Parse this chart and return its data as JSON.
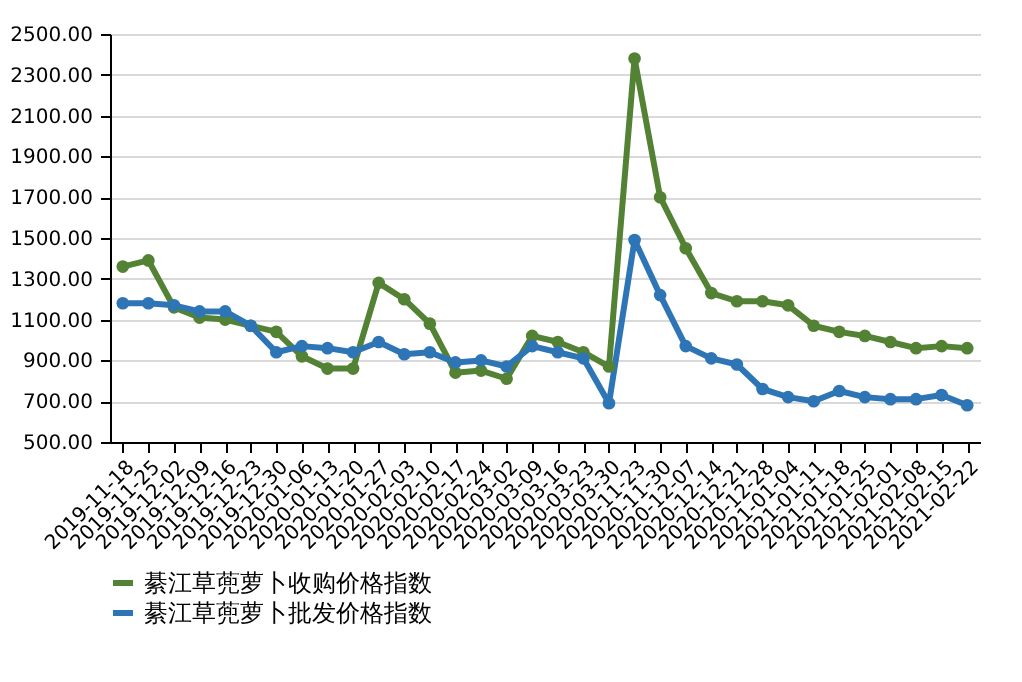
{
  "chart_data": {
    "type": "line",
    "categories": [
      "2019-11-18",
      "2019-11-25",
      "2019-12-02",
      "2019-12-09",
      "2019-12-16",
      "2019-12-23",
      "2019-12-30",
      "2020-01-06",
      "2020-01-13",
      "2020-01-20",
      "2020-01-27",
      "2020-02-03",
      "2020-02-10",
      "2020-02-17",
      "2020-02-24",
      "2020-03-02",
      "2020-03-09",
      "2020-03-16",
      "2020-03-23",
      "2020-03-30",
      "2020-11-23",
      "2020-11-30",
      "2020-12-07",
      "2020-12-14",
      "2020-12-21",
      "2020-12-28",
      "2021-01-04",
      "2021-01-11",
      "2021-01-18",
      "2021-01-25",
      "2021-02-01",
      "2021-02-08",
      "2021-02-15",
      "2021-02-22"
    ],
    "series": [
      {
        "name": "綦江草蔸萝卜收购价格指数",
        "color": "#548235",
        "values": [
          1360,
          1390,
          1160,
          1110,
          1100,
          1070,
          1040,
          920,
          860,
          860,
          1280,
          1200,
          1080,
          840,
          850,
          810,
          1020,
          990,
          940,
          870,
          2380,
          1700,
          1450,
          1230,
          1190,
          1190,
          1170,
          1070,
          1040,
          1020,
          990,
          960,
          970,
          960
        ]
      },
      {
        "name": "綦江草蔸萝卜批发价格指数",
        "color": "#2e75b6",
        "values": [
          1180,
          1180,
          1170,
          1140,
          1140,
          1070,
          940,
          970,
          960,
          940,
          990,
          930,
          940,
          890,
          900,
          870,
          970,
          940,
          910,
          690,
          1490,
          1220,
          970,
          910,
          880,
          760,
          720,
          700,
          750,
          720,
          710,
          710,
          730,
          680
        ]
      }
    ],
    "ylim": [
      500,
      2500
    ],
    "yticks": [
      {
        "value": 500,
        "label": "500.00"
      },
      {
        "value": 700,
        "label": "700.00"
      },
      {
        "value": 900,
        "label": "900.00"
      },
      {
        "value": 1100,
        "label": "1100.00"
      },
      {
        "value": 1300,
        "label": "1300.00"
      },
      {
        "value": 1500,
        "label": "1500.00"
      },
      {
        "value": 1700,
        "label": "1700.00"
      },
      {
        "value": 1900,
        "label": "1900.00"
      },
      {
        "value": 2100,
        "label": "2100.00"
      },
      {
        "value": 2300,
        "label": "2300.00"
      },
      {
        "value": 2500,
        "label": "2500.00"
      }
    ],
    "grid": "y",
    "legend": "bottom",
    "marker": "circle",
    "line_style": "solid"
  }
}
